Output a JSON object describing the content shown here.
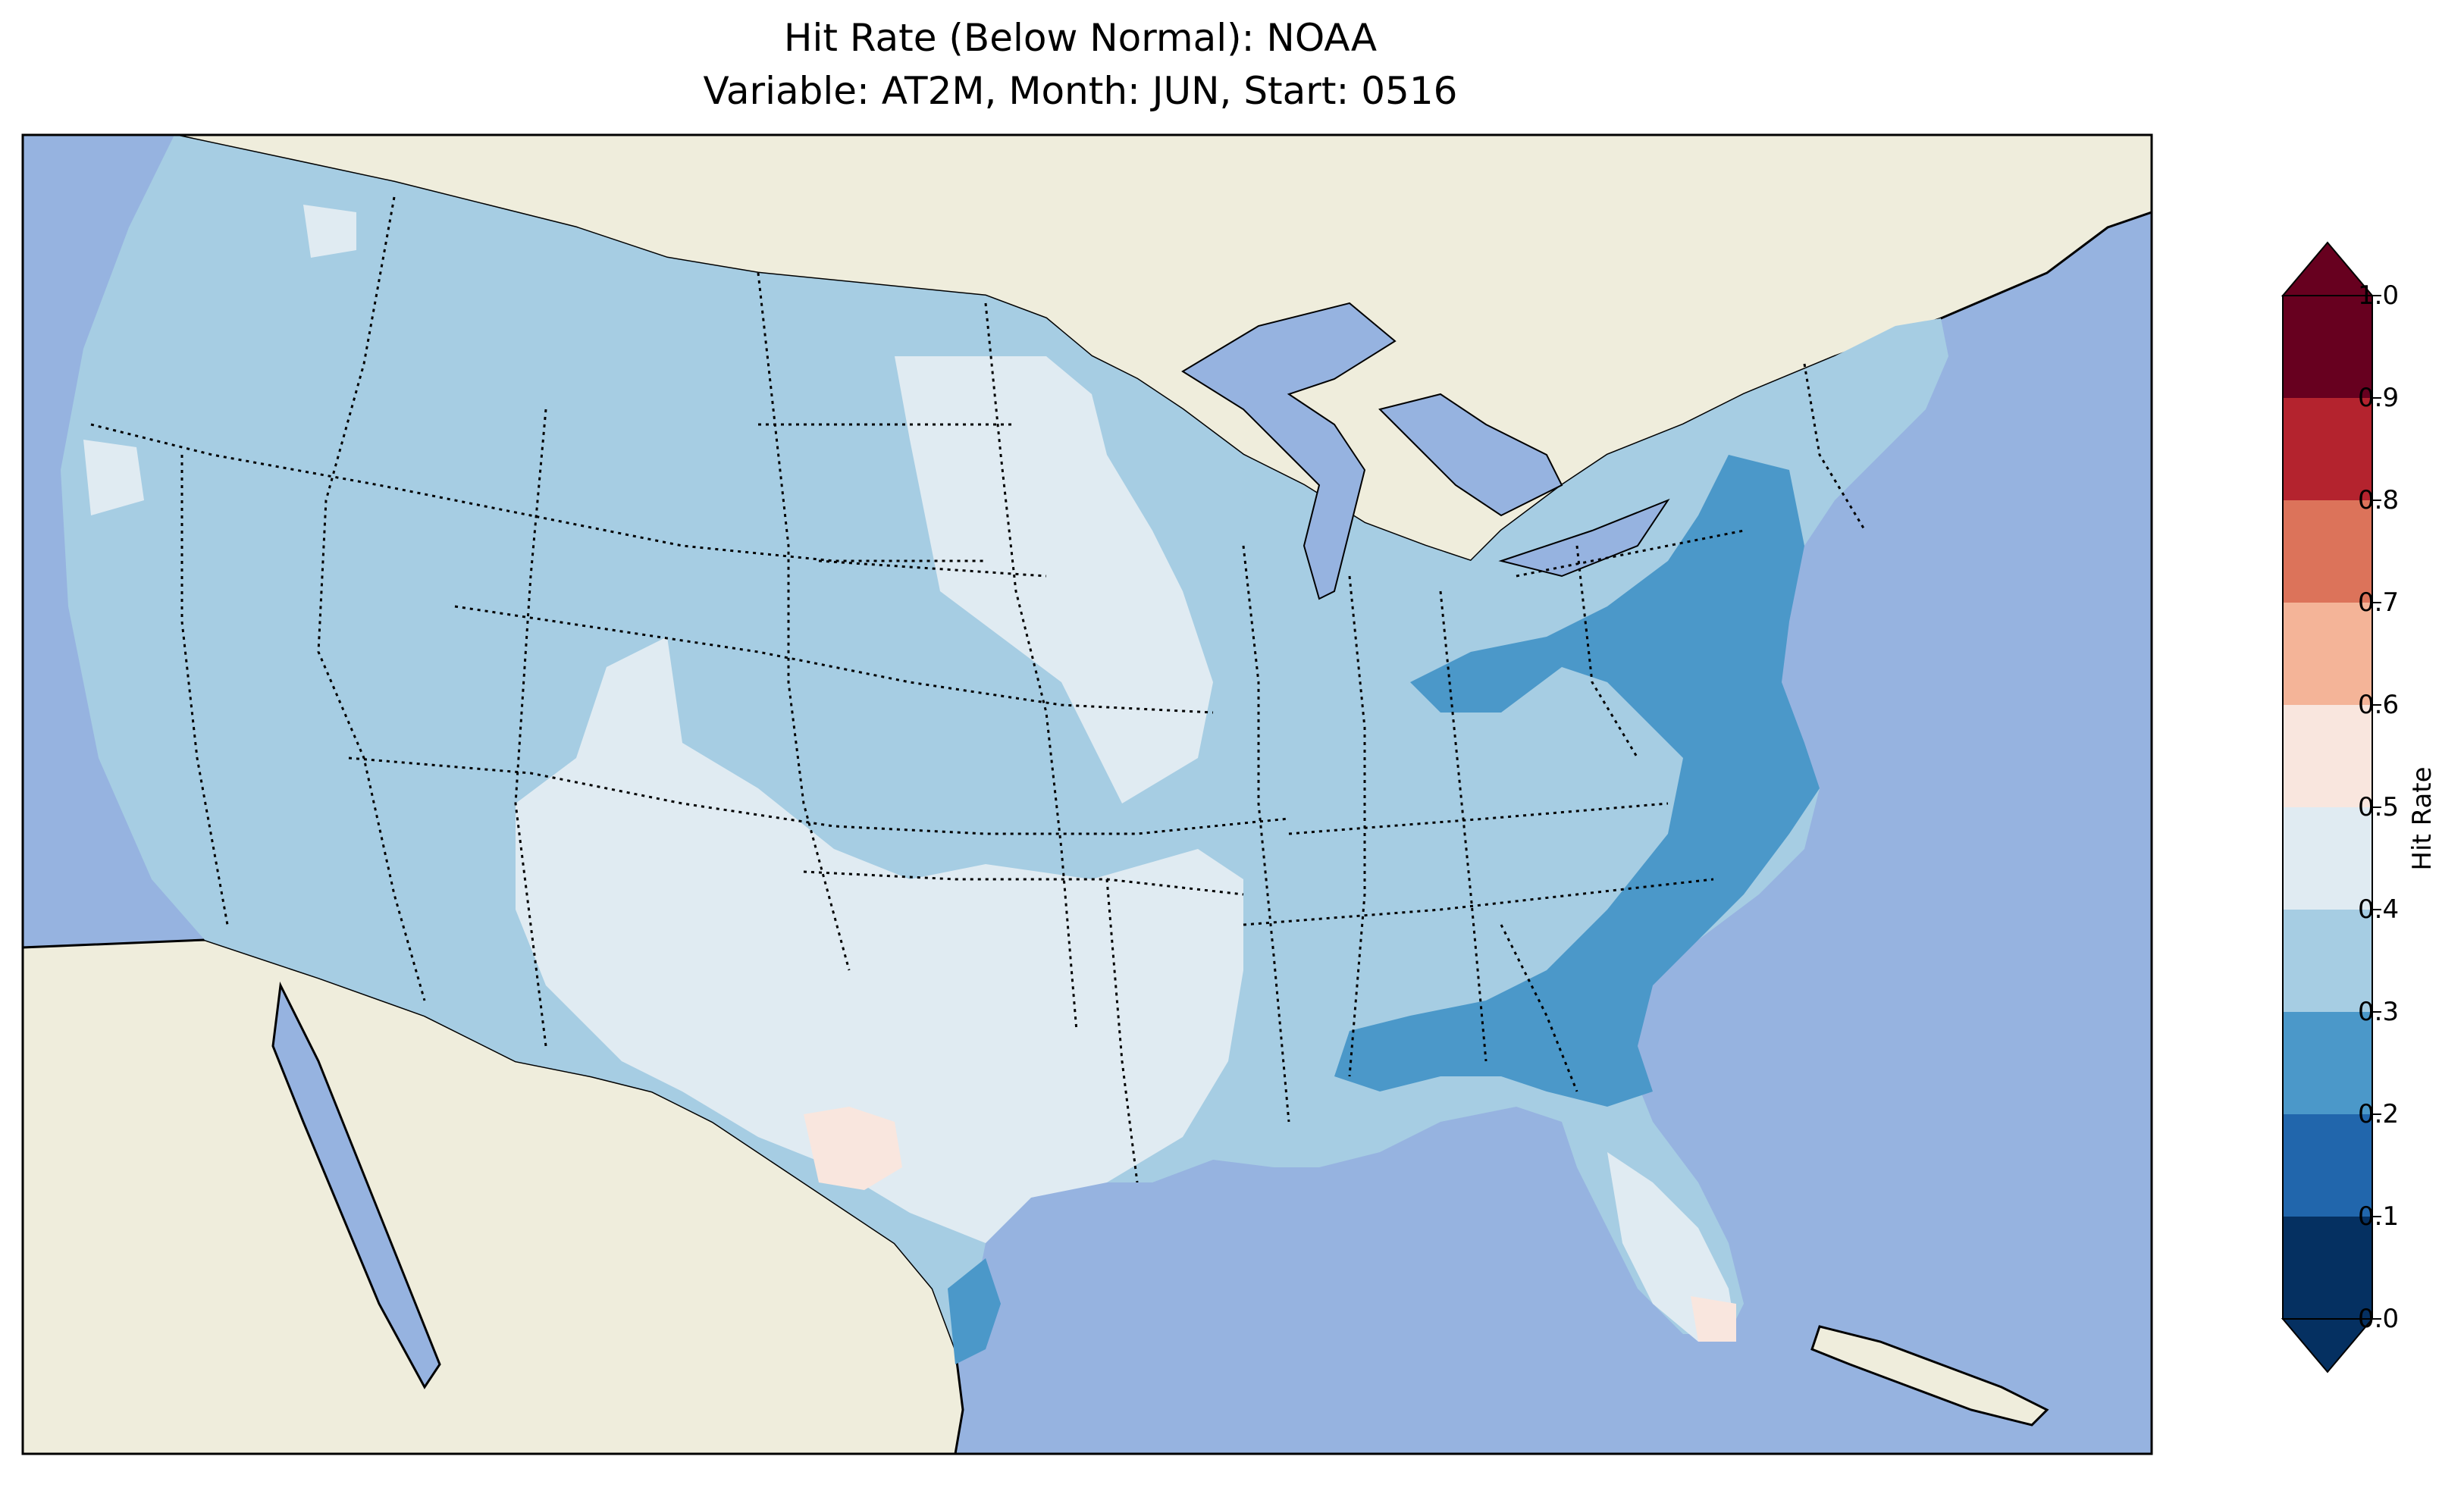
{
  "title": "Hit Rate (Below Normal): NOAA",
  "subtitle": "Variable: AT2M, Month: JUN, Start: 0516",
  "map": {
    "region": "Contiguous United States",
    "ocean_color": "#96b3e0",
    "land_color": "#efeddc",
    "border_color": "#000000"
  },
  "colorbar": {
    "label": "Hit Rate",
    "ticks": [
      "0.0",
      "0.1",
      "0.2",
      "0.3",
      "0.4",
      "0.5",
      "0.6",
      "0.7",
      "0.8",
      "0.9",
      "1.0"
    ],
    "bins": [
      {
        "range": [
          0.0,
          0.1
        ],
        "color": "#053061"
      },
      {
        "range": [
          0.1,
          0.2
        ],
        "color": "#2166ac"
      },
      {
        "range": [
          0.2,
          0.3
        ],
        "color": "#4b98c9"
      },
      {
        "range": [
          0.3,
          0.4
        ],
        "color": "#a6cde3"
      },
      {
        "range": [
          0.4,
          0.5
        ],
        "color": "#e0ebf2"
      },
      {
        "range": [
          0.5,
          0.6
        ],
        "color": "#f9e6de"
      },
      {
        "range": [
          0.6,
          0.7
        ],
        "color": "#f4b498"
      },
      {
        "range": [
          0.7,
          0.8
        ],
        "color": "#dc735a"
      },
      {
        "range": [
          0.8,
          0.9
        ],
        "color": "#b4232e"
      },
      {
        "range": [
          0.9,
          1.0
        ],
        "color": "#67001f"
      }
    ],
    "extend": "both"
  },
  "regions": [
    {
      "name": "Pacific Northwest / Rockies",
      "hit_rate_bin": "0.3-0.4"
    },
    {
      "name": "Northern Plains / Dakotas",
      "hit_rate_bin": "0.4-0.5"
    },
    {
      "name": "Southwest / New Mexico",
      "hit_rate_bin": "0.4-0.5"
    },
    {
      "name": "Texas",
      "hit_rate_bin": "0.4-0.5"
    },
    {
      "name": "West Texas patch",
      "hit_rate_bin": "0.5-0.6"
    },
    {
      "name": "Mid-Atlantic / Southeast coast",
      "hit_rate_bin": "0.2-0.3"
    },
    {
      "name": "Florida peninsula",
      "hit_rate_bin": "0.4-0.5"
    },
    {
      "name": "Florida Keys",
      "hit_rate_bin": "0.5-0.6"
    },
    {
      "name": "South Texas coast",
      "hit_rate_bin": "0.2-0.3"
    }
  ]
}
